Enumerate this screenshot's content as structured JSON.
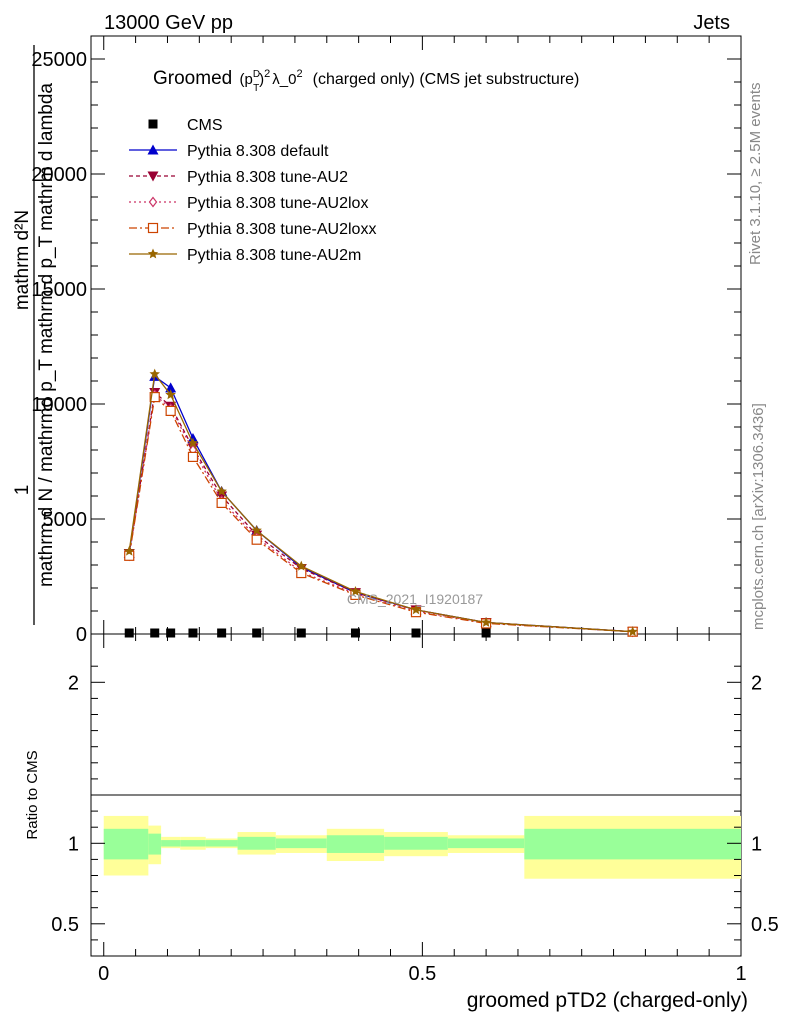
{
  "header": {
    "left": "13000 GeV pp",
    "right": "Jets"
  },
  "side_labels": {
    "rivet": "Rivet 3.1.10, ≥ 2.5M events",
    "mcplots": "mcplots.cern.ch [arXiv:1306.3436]"
  },
  "watermark": "CMS_2021_I1920187",
  "chart_data": [
    {
      "type": "line",
      "title_prefix": "Groomed",
      "title_math_base": "(p",
      "title_math_sup": "D",
      "title_math_sub": "T",
      "title_math_close": ")",
      "title_math_exp": "2",
      "title_rest": "λ_0",
      "title_rest_exp": "2",
      "title_suffix": "(charged only) (CMS jet substructure)",
      "ylabel_one": "1",
      "ylabel_num": "mathrm d²N",
      "ylabel_den": "mathrm d N / mathrmd p_T mathrm d p_T mathrm d lambda",
      "ylim": [
        0,
        26000
      ],
      "xlim": [
        -0.02,
        1.0
      ],
      "y_ticks": [
        {
          "v": 0,
          "label": "0"
        },
        {
          "v": 5000,
          "label": "5000"
        },
        {
          "v": 10000,
          "label": "10000"
        },
        {
          "v": 15000,
          "label": "15000"
        },
        {
          "v": 20000,
          "label": "20000"
        },
        {
          "v": 25000,
          "label": "25000"
        }
      ],
      "legend_position": "top-left",
      "series": [
        {
          "name": "CMS",
          "color": "#000000",
          "marker": "square-filled",
          "dash": "",
          "x": [
            0.04,
            0.08,
            0.105,
            0.14,
            0.185,
            0.24,
            0.31,
            0.395,
            0.49,
            0.6
          ],
          "y": [
            0,
            0,
            0,
            0,
            0,
            0,
            0,
            0,
            0,
            0
          ]
        },
        {
          "name": "Pythia 8.308 default",
          "color": "#0000cc",
          "marker": "triangle-up-filled",
          "dash": "",
          "x": [
            0.04,
            0.08,
            0.105,
            0.14,
            0.185,
            0.24,
            0.31,
            0.395,
            0.49,
            0.6,
            0.83
          ],
          "y": [
            3500,
            11200,
            10700,
            8500,
            6200,
            4500,
            2900,
            1800,
            1050,
            500,
            100
          ]
        },
        {
          "name": "Pythia 8.308 tune-AU2",
          "color": "#990033",
          "marker": "triangle-down-filled",
          "dash": "4,3",
          "x": [
            0.04,
            0.08,
            0.105,
            0.14,
            0.185,
            0.24,
            0.31,
            0.395,
            0.49,
            0.6,
            0.83
          ],
          "y": [
            3500,
            10500,
            9900,
            8100,
            6000,
            4300,
            2850,
            1800,
            1050,
            500,
            100
          ]
        },
        {
          "name": "Pythia 8.308 tune-AU2lox",
          "color": "#cc3366",
          "marker": "diamond-open",
          "dash": "2,3",
          "x": [
            0.04,
            0.08,
            0.105,
            0.14,
            0.185,
            0.24,
            0.31,
            0.395,
            0.49,
            0.6,
            0.83
          ],
          "y": [
            3400,
            10400,
            9800,
            8000,
            5800,
            4200,
            2700,
            1750,
            1000,
            480,
            100
          ]
        },
        {
          "name": "Pythia 8.308 tune-AU2loxx",
          "color": "#cc4400",
          "marker": "square-open",
          "dash": "8,3,2,3",
          "x": [
            0.04,
            0.08,
            0.105,
            0.14,
            0.185,
            0.24,
            0.31,
            0.395,
            0.49,
            0.6,
            0.83
          ],
          "y": [
            3400,
            10300,
            9700,
            7700,
            5700,
            4100,
            2650,
            1700,
            950,
            460,
            100
          ]
        },
        {
          "name": "Pythia 8.308 tune-AU2m",
          "color": "#996600",
          "marker": "star",
          "dash": "",
          "x": [
            0.04,
            0.08,
            0.105,
            0.14,
            0.185,
            0.24,
            0.31,
            0.395,
            0.49,
            0.6,
            0.83
          ],
          "y": [
            3600,
            11300,
            10400,
            8300,
            6200,
            4500,
            2950,
            1850,
            1050,
            500,
            100
          ]
        }
      ]
    },
    {
      "type": "area",
      "ylabel": "Ratio to CMS",
      "xlabel": "groomed pTD2 (charged-only)",
      "ylim": [
        0.3,
        2.3
      ],
      "xlim": [
        -0.02,
        1.0
      ],
      "y_ticks": [
        {
          "v": 0.5,
          "label": "0.5"
        },
        {
          "v": 1,
          "label": "1"
        },
        {
          "v": 2,
          "label": "2"
        }
      ],
      "x_ticks": [
        {
          "v": 0,
          "label": "0"
        },
        {
          "v": 0.5,
          "label": "0.5"
        },
        {
          "v": 1,
          "label": "1"
        }
      ],
      "bands": [
        {
          "x0": 0.0,
          "x1": 0.07,
          "outer": [
            0.8,
            1.17
          ],
          "inner": [
            0.9,
            1.09
          ]
        },
        {
          "x0": 0.07,
          "x1": 0.09,
          "outer": [
            0.87,
            1.11
          ],
          "inner": [
            0.93,
            1.06
          ]
        },
        {
          "x0": 0.09,
          "x1": 0.12,
          "outer": [
            0.97,
            1.04
          ],
          "inner": [
            0.98,
            1.02
          ]
        },
        {
          "x0": 0.12,
          "x1": 0.16,
          "outer": [
            0.96,
            1.04
          ],
          "inner": [
            0.98,
            1.02
          ]
        },
        {
          "x0": 0.16,
          "x1": 0.21,
          "outer": [
            0.97,
            1.03
          ],
          "inner": [
            0.98,
            1.02
          ]
        },
        {
          "x0": 0.21,
          "x1": 0.27,
          "outer": [
            0.93,
            1.07
          ],
          "inner": [
            0.96,
            1.04
          ]
        },
        {
          "x0": 0.27,
          "x1": 0.35,
          "outer": [
            0.94,
            1.05
          ],
          "inner": [
            0.97,
            1.03
          ]
        },
        {
          "x0": 0.35,
          "x1": 0.44,
          "outer": [
            0.89,
            1.09
          ],
          "inner": [
            0.94,
            1.05
          ]
        },
        {
          "x0": 0.44,
          "x1": 0.54,
          "outer": [
            0.92,
            1.07
          ],
          "inner": [
            0.96,
            1.04
          ]
        },
        {
          "x0": 0.54,
          "x1": 0.66,
          "outer": [
            0.94,
            1.05
          ],
          "inner": [
            0.97,
            1.03
          ]
        },
        {
          "x0": 0.66,
          "x1": 1.0,
          "outer": [
            0.78,
            1.17
          ],
          "inner": [
            0.9,
            1.09
          ]
        }
      ],
      "band_colors": {
        "outer": "#ffff99",
        "inner": "#99ff99"
      }
    }
  ]
}
